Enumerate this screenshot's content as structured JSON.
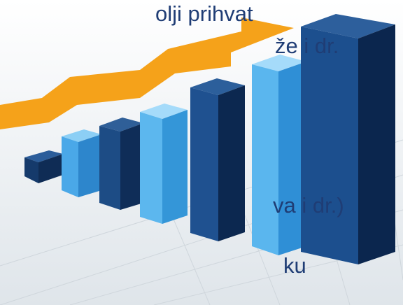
{
  "texts": {
    "line1": "olji prihvat",
    "line2": "že i dr.",
    "line3": "va i dr.)",
    "line4": "ku"
  }
}
